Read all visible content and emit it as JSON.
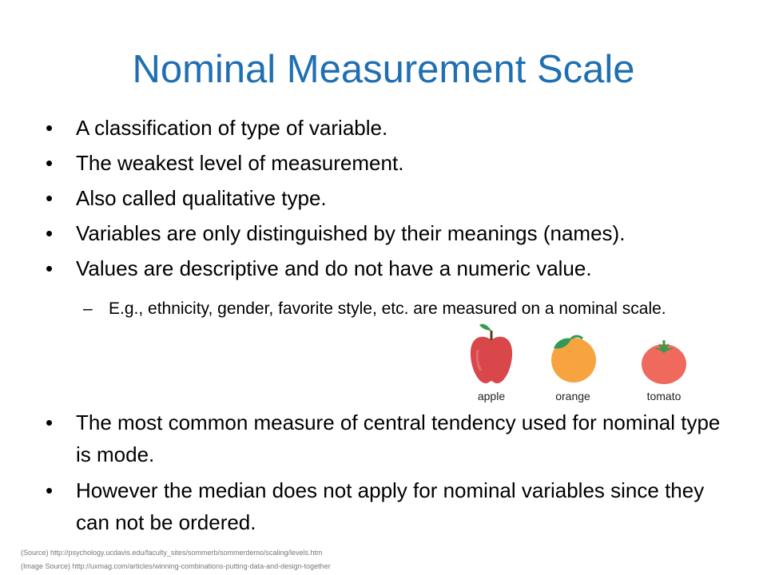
{
  "slide": {
    "title": "Nominal Measurement Scale",
    "title_color": "#1f6fb2",
    "bullets": [
      "A classification of type of variable.",
      "The weakest level of measurement.",
      "Also called qualitative type.",
      "Variables are only distinguished by their meanings (names).",
      "Values are descriptive and do not have a numeric value."
    ],
    "sub_bullet": "E.g., ethnicity, gender, favorite style, etc. are measured on a nominal scale.",
    "bullets_lower": [
      "The most common measure of central tendency used for nominal type is mode.",
      "However the median does not apply for nominal variables since they can not be ordered."
    ],
    "fruits": [
      {
        "label": "apple",
        "icon": "apple-icon",
        "color": "#d9474b"
      },
      {
        "label": "orange",
        "icon": "orange-icon",
        "color": "#f7a440"
      },
      {
        "label": "tomato",
        "icon": "tomato-icon",
        "color": "#ef6a5c"
      }
    ],
    "sources": {
      "source": "(Source) http://psychology.ucdavis.edu/faculty_sites/sommerb/sommerdemo/scaling/levels.htm",
      "image_source": "(Image Source) http://uxmag.com/articles/winning-combinations-putting-data-and-design-together"
    }
  }
}
